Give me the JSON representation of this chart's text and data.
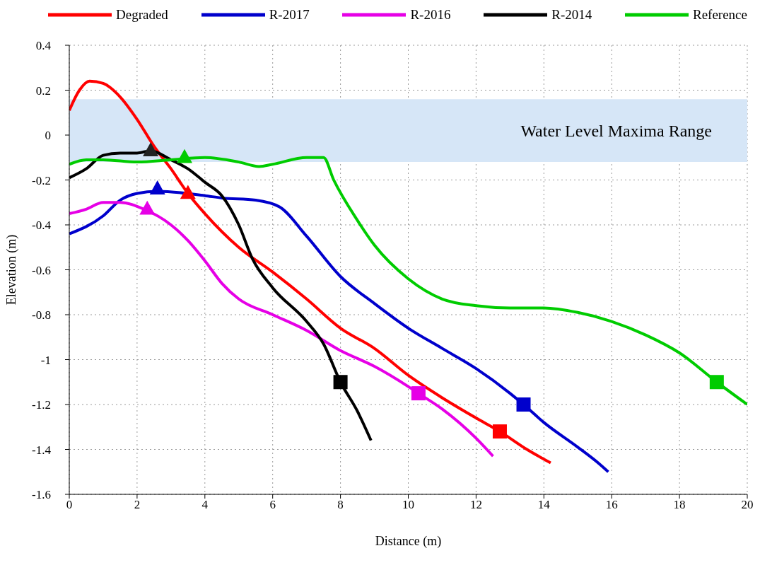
{
  "chart_data": {
    "type": "line",
    "xlabel": "Distance (m)",
    "ylabel": "Elevation (m)",
    "xlim": [
      0,
      20
    ],
    "xticks": [
      0,
      2,
      4,
      6,
      8,
      10,
      12,
      14,
      16,
      18,
      20
    ],
    "ylim": [
      -1.6,
      0.4
    ],
    "yticks": [
      -1.6,
      -1.4,
      -1.2,
      -1,
      -0.8,
      -0.6,
      -0.4,
      -0.2,
      0,
      0.2,
      0.4
    ],
    "grid": true,
    "legend": "top",
    "line_style": "solid",
    "bands": [
      {
        "axis": "y",
        "from": -0.12,
        "to": 0.16,
        "label": "Water Level Maxima Range",
        "color": "#d6e6f7"
      }
    ],
    "series": [
      {
        "name": "Degraded",
        "color": "#ff0000",
        "x": [
          0,
          0.3,
          0.6,
          1,
          1.5,
          2,
          2.5,
          3,
          3.5,
          4,
          5,
          6,
          7,
          8,
          9,
          10,
          11,
          12,
          12.7,
          13.5,
          14.2
        ],
        "values": [
          0.11,
          0.2,
          0.24,
          0.23,
          0.17,
          0.07,
          -0.05,
          -0.15,
          -0.26,
          -0.35,
          -0.5,
          -0.61,
          -0.73,
          -0.86,
          -0.95,
          -1.07,
          -1.17,
          -1.26,
          -1.32,
          -1.4,
          -1.46
        ]
      },
      {
        "name": "R-2017",
        "color": "#0000cc",
        "x": [
          0,
          1,
          1.5,
          2,
          2.6,
          4,
          4.5,
          5.5,
          6.2,
          7,
          8,
          9,
          10,
          11,
          12,
          13,
          13.4,
          14,
          15,
          15.6,
          15.9
        ],
        "values": [
          -0.44,
          -0.36,
          -0.29,
          -0.26,
          -0.25,
          -0.27,
          -0.28,
          -0.29,
          -0.32,
          -0.45,
          -0.63,
          -0.75,
          -0.86,
          -0.95,
          -1.04,
          -1.15,
          -1.2,
          -1.28,
          -1.39,
          -1.46,
          -1.5
        ]
      },
      {
        "name": "R-2016",
        "color": "#e600e6",
        "x": [
          0,
          0.5,
          1,
          1.5,
          2.2,
          3,
          3.5,
          4,
          4.5,
          5,
          6,
          7,
          8,
          9,
          10,
          10.3,
          11,
          12,
          12.5
        ],
        "values": [
          -0.35,
          -0.33,
          -0.3,
          -0.3,
          -0.33,
          -0.4,
          -0.47,
          -0.56,
          -0.66,
          -0.73,
          -0.8,
          -0.87,
          -0.96,
          -1.03,
          -1.12,
          -1.15,
          -1.22,
          -1.35,
          -1.43
        ]
      },
      {
        "name": "R-2014",
        "color": "#000000",
        "x": [
          0,
          0.5,
          1,
          1.5,
          2,
          2.4,
          3,
          3.5,
          4,
          4.5,
          5,
          5.4,
          6,
          7,
          7.5,
          8,
          8.5,
          8.9
        ],
        "values": [
          -0.19,
          -0.15,
          -0.09,
          -0.08,
          -0.08,
          -0.07,
          -0.11,
          -0.15,
          -0.21,
          -0.27,
          -0.4,
          -0.55,
          -0.68,
          -0.83,
          -0.93,
          -1.1,
          -1.23,
          -1.36
        ]
      },
      {
        "name": "Reference",
        "color": "#00cc00",
        "x": [
          0,
          0.5,
          1,
          2,
          3,
          4,
          5,
          5.6,
          6,
          7,
          7.5,
          7.8,
          8.5,
          9,
          10,
          11,
          12,
          13,
          14,
          15,
          16,
          17,
          18,
          19.1,
          20
        ],
        "values": [
          -0.13,
          -0.11,
          -0.11,
          -0.12,
          -0.11,
          -0.1,
          -0.12,
          -0.14,
          -0.13,
          -0.1,
          -0.1,
          -0.2,
          -0.38,
          -0.49,
          -0.64,
          -0.73,
          -0.76,
          -0.77,
          -0.77,
          -0.79,
          -0.83,
          -0.89,
          -0.97,
          -1.1,
          -1.2
        ]
      },
      {
        "type": "scatter",
        "marker": "triangle",
        "x": [
          3.5,
          2.6,
          2.3,
          2.4,
          3.4
        ],
        "values": [
          -0.26,
          -0.24,
          -0.33,
          -0.07,
          -0.1
        ],
        "colors": [
          "#ff0000",
          "#0000cc",
          "#e600e6",
          "#222222",
          "#00cc00"
        ]
      },
      {
        "type": "scatter",
        "marker": "square",
        "x": [
          12.7,
          13.4,
          10.3,
          8,
          19.1
        ],
        "values": [
          -1.32,
          -1.2,
          -1.15,
          -1.1,
          -1.1
        ],
        "colors": [
          "#ff0000",
          "#0000cc",
          "#e600e6",
          "#000000",
          "#00cc00"
        ]
      }
    ]
  }
}
